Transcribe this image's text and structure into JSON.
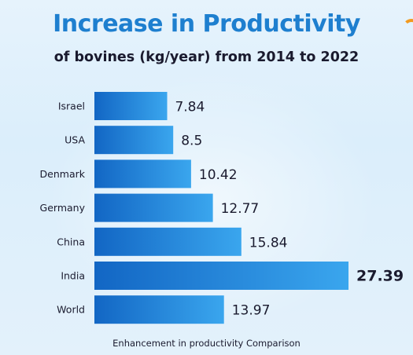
{
  "chart_data": {
    "type": "bar",
    "orientation": "horizontal",
    "title": "Increase in Productivity",
    "subtitle": "of bovines (kg/year) from 2014 to 2022",
    "caption": "Enhancement in productivity Comparison",
    "categories": [
      "Israel",
      "USA",
      "Denmark",
      "Germany",
      "China",
      "India",
      "World"
    ],
    "values": [
      7.84,
      8.5,
      10.42,
      12.77,
      15.84,
      27.39,
      13.97
    ],
    "value_labels": [
      "7.84",
      "8.5",
      "10.42",
      "12.77",
      "15.84",
      "27.39",
      "13.97"
    ],
    "highlight": "India",
    "xlim": [
      0,
      27.39
    ],
    "grid": false,
    "legend": "none",
    "colors": {
      "bar_light": "#3aa6ee",
      "bar_dark": "#1266c4",
      "title": "#1e7fcf"
    }
  }
}
